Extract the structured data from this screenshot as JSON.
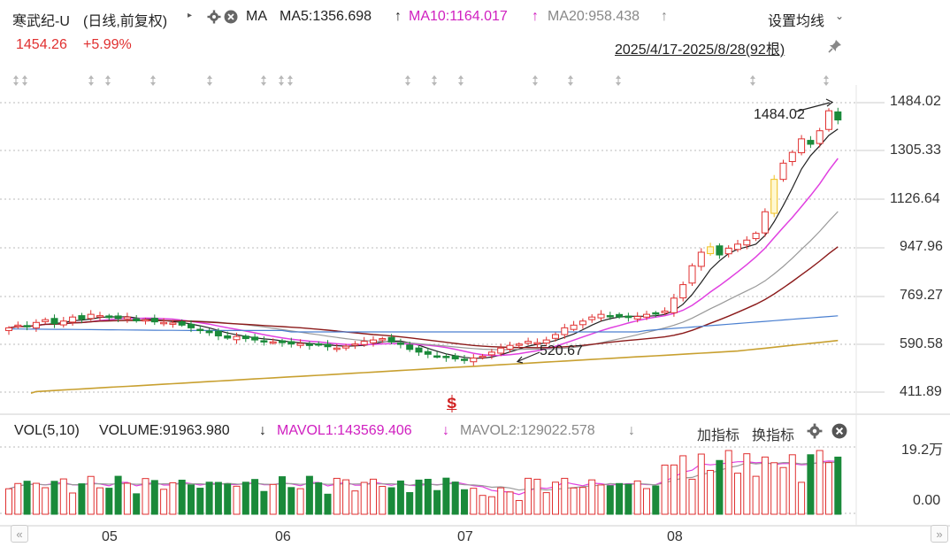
{
  "header": {
    "stock_name": "寒武纪-U",
    "period": "(日线,前复权)",
    "indicator": "MA",
    "ma5": "MA5:1356.698",
    "ma5_arrow": "↑",
    "ma10": "MA10:1164.017",
    "ma10_arrow": "↑",
    "ma20": "MA20:958.438",
    "ma20_arrow": "↑",
    "settings_label": "设置均线",
    "price": "1454.26",
    "change": "+5.99%",
    "date_range": "2025/4/17-2025/8/28(92根)"
  },
  "price_chart": {
    "y_ticks": [
      "1484.02",
      "1305.33",
      "1126.64",
      "947.96",
      "769.27",
      "590.58",
      "411.89"
    ],
    "high_label": "1484.02",
    "low_label": "520.67",
    "signal_label": "S"
  },
  "volume_panel": {
    "indicator": "VOL(5,10)",
    "volume": "VOLUME:91963.980",
    "volume_arrow": "↓",
    "mavol1": "MAVOL1:143569.406",
    "mavol1_arrow": "↓",
    "mavol2": "MAVOL2:129022.578",
    "mavol2_arrow": "↓",
    "add_indicator": "加指标",
    "switch_indicator": "换指标",
    "y_ticks": [
      "19.2万",
      "0.00"
    ]
  },
  "x_axis": {
    "labels": [
      "05",
      "06",
      "07",
      "08"
    ]
  },
  "pager": {
    "prev": "«",
    "next": "»"
  },
  "colors": {
    "up": "#e03030",
    "down": "#1a8a3a",
    "ma5": "#222222",
    "ma10": "#e040e0",
    "ma20": "#999999",
    "ma30": "#8b1a1a",
    "ma60": "#4a7fd0",
    "ma120": "#c8a030",
    "limit_up": "#f0c020"
  }
}
